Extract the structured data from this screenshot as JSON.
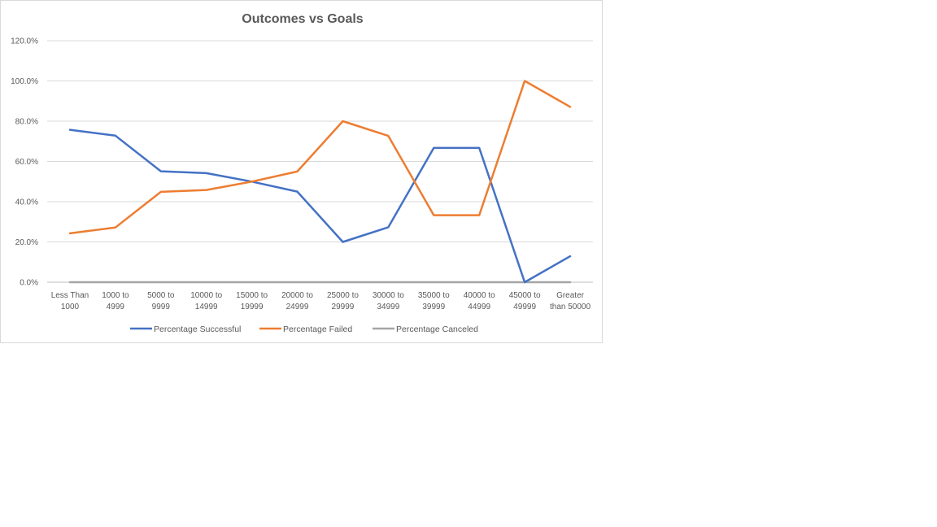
{
  "chart_data": {
    "type": "line",
    "title": "Outcomes vs Goals",
    "xlabel": "",
    "ylabel": "",
    "categories": [
      [
        "Less Than",
        "1000"
      ],
      [
        "1000 to",
        "4999"
      ],
      [
        "5000 to",
        "9999"
      ],
      [
        "10000 to",
        "14999"
      ],
      [
        "15000 to",
        "19999"
      ],
      [
        "20000 to",
        "24999"
      ],
      [
        "25000 to",
        "29999"
      ],
      [
        "30000 to",
        "34999"
      ],
      [
        "35000 to",
        "39999"
      ],
      [
        "40000 to",
        "44999"
      ],
      [
        "45000 to",
        "49999"
      ],
      [
        "Greater",
        "than 50000"
      ]
    ],
    "ylim": [
      0,
      120
    ],
    "yticks": [
      "0.0%",
      "20.0%",
      "40.0%",
      "60.0%",
      "80.0%",
      "100.0%",
      "120.0%"
    ],
    "ytick_values": [
      0,
      20,
      40,
      60,
      80,
      100,
      120
    ],
    "grid": true,
    "legend_position": "bottom",
    "series": [
      {
        "name": "Percentage Successful",
        "color": "#4472c4",
        "values": [
          75.7,
          72.8,
          55.1,
          54.2,
          50.0,
          45.0,
          20.0,
          27.3,
          66.7,
          66.7,
          0.0,
          12.9
        ]
      },
      {
        "name": "Percentage Failed",
        "color": "#ed7d31",
        "values": [
          24.3,
          27.2,
          44.9,
          45.8,
          50.0,
          55.0,
          80.0,
          72.7,
          33.3,
          33.3,
          100.0,
          87.1
        ]
      },
      {
        "name": "Percentage Canceled",
        "color": "#a5a5a5",
        "values": [
          0,
          0,
          0,
          0,
          0,
          0,
          0,
          0,
          0,
          0,
          0,
          0
        ]
      }
    ]
  }
}
